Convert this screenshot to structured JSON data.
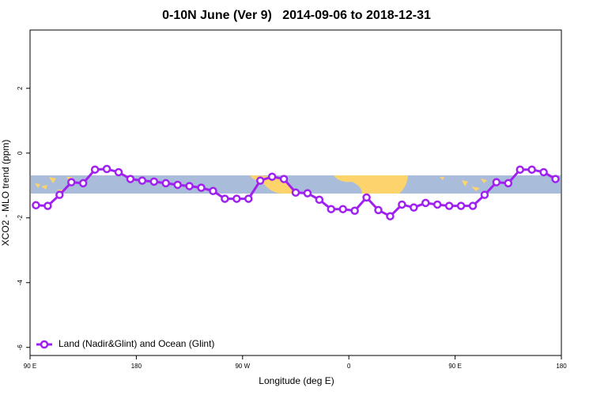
{
  "chart_data": {
    "type": "line",
    "title": "0-10N June (Ver 9)   2014-09-06 to 2018-12-31",
    "x_label": "Longitude (deg E)",
    "y_label": "XCO2 - MLO trend (ppm)",
    "x": [
      95,
      105,
      115,
      125,
      135,
      145,
      155,
      165,
      175,
      185,
      195,
      205,
      215,
      225,
      235,
      245,
      255,
      265,
      275,
      285,
      295,
      305,
      315,
      325,
      335,
      345,
      355,
      365,
      375,
      385,
      395,
      405,
      415,
      425,
      435,
      445,
      455,
      465,
      475,
      485,
      495,
      505,
      515,
      525,
      535
    ],
    "series": [
      {
        "name": "Land (Nadir&Glint) and Ocean (Glint)",
        "color": "#a020f0",
        "values": [
          -1.61,
          -1.63,
          -1.29,
          -0.9,
          -0.93,
          -0.51,
          -0.49,
          -0.59,
          -0.8,
          -0.85,
          -0.88,
          -0.93,
          -0.98,
          -1.02,
          -1.07,
          -1.17,
          -1.41,
          -1.41,
          -1.41,
          -0.85,
          -0.73,
          -0.8,
          -1.22,
          -1.24,
          -1.44,
          -1.73,
          -1.73,
          -1.78,
          -1.37,
          -1.76,
          -1.95,
          -1.59,
          -1.68,
          -1.54,
          -1.59,
          -1.63,
          -1.63,
          -1.63,
          -1.29,
          -0.9,
          -0.93,
          -0.51,
          -0.51,
          -0.59,
          -0.8
        ]
      }
    ],
    "xlim": [
      90,
      540
    ],
    "xticks": [
      {
        "value": 90,
        "label": "90 E"
      },
      180,
      {
        "value": 270,
        "label": "90 W"
      },
      {
        "value": 360,
        "label": "0"
      },
      {
        "value": 450,
        "label": "90 E"
      },
      {
        "value": 540,
        "label": "180"
      }
    ],
    "ylim": [
      -6.25,
      3.8
    ],
    "yticks": [
      -6,
      -4,
      -2,
      0,
      2
    ],
    "legend_position": "bottom-left"
  }
}
